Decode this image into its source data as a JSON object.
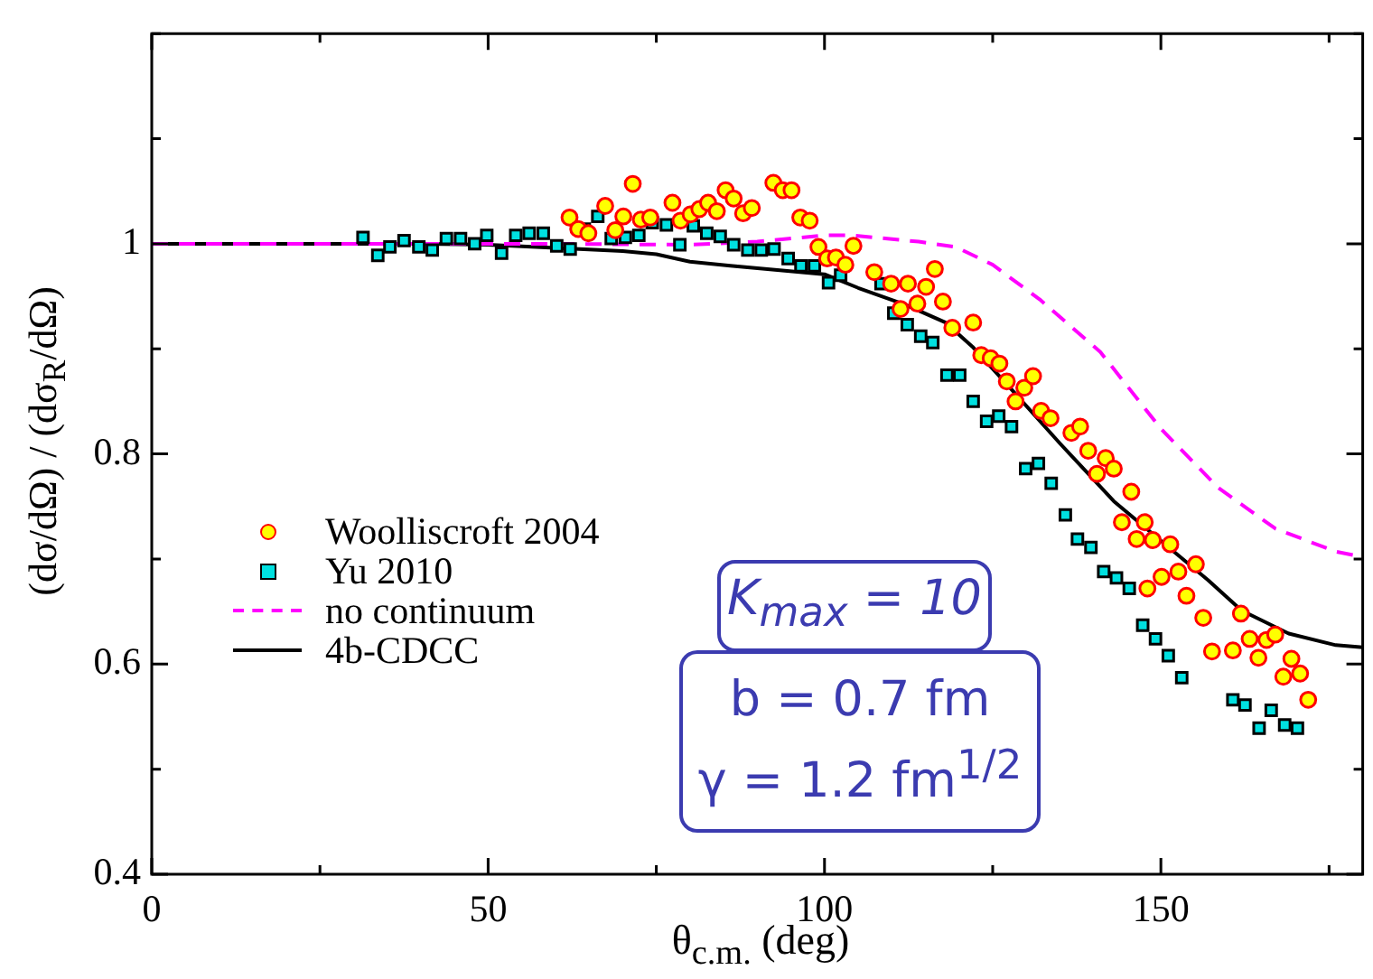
{
  "chart_data": {
    "type": "scatter",
    "xlabel": "θ$_{c.m.}$ (deg)",
    "ylabel": "(dσ/dΩ) / (dσ$_{R}$/dΩ)",
    "xlim": [
      0,
      180
    ],
    "xticks": [
      0,
      {
        "value": 25,
        "label": null
      },
      50,
      {
        "value": 75,
        "label": null
      },
      100,
      {
        "value": 125,
        "label": null
      },
      150,
      {
        "value": 175,
        "label": null
      }
    ],
    "ylim": [
      0.4,
      1.2
    ],
    "yticks": [
      0.4,
      {
        "value": 0.5,
        "label": null
      },
      0.6,
      {
        "value": 0.7,
        "label": null
      },
      0.8,
      {
        "value": 0.9,
        "label": null
      },
      1,
      {
        "value": 1.1,
        "label": null
      },
      {
        "value": 1.2,
        "label": null
      }
    ],
    "legend": "left",
    "grid": false,
    "annotations": [
      "K$_{max}$ = 10",
      "b = 0.7 fm",
      "γ = 1.2 fm$^{1/2}$"
    ],
    "series": [
      {
        "name": "Woolliscroft 2004",
        "marker": "circle",
        "color": "#ffff00",
        "x": [
          62.1,
          63.4,
          64.9,
          67.4,
          68.9,
          70.1,
          71.5,
          72.7,
          74.1,
          77.4,
          78.6,
          80.1,
          81.4,
          82.7,
          84.0,
          85.3,
          86.5,
          87.9,
          89.2,
          92.4,
          93.8,
          95.1,
          96.4,
          97.8,
          99.1,
          100.4,
          101.7,
          103.1,
          104.3,
          107.4,
          109.9,
          111.3,
          112.4,
          113.8,
          115.1,
          116.4,
          117.6,
          119.0,
          122.1,
          123.3,
          124.7,
          126.0,
          127.1,
          128.4,
          129.7,
          131.0,
          132.2,
          133.6,
          136.7,
          138.0,
          139.2,
          140.5,
          141.8,
          143.0,
          144.2,
          145.6,
          146.4,
          147.6,
          148.0,
          148.8,
          150.1,
          151.4,
          152.6,
          153.8,
          155.2,
          156.3,
          157.6,
          160.7,
          161.9,
          163.2,
          164.5,
          165.7,
          167.0,
          168.2,
          169.4,
          170.7,
          171.9
        ],
        "values": [
          1.025,
          1.014,
          1.01,
          1.036,
          1.013,
          1.026,
          1.057,
          1.023,
          1.025,
          1.039,
          1.022,
          1.028,
          1.033,
          1.039,
          1.031,
          1.051,
          1.043,
          1.029,
          1.034,
          1.058,
          1.051,
          1.051,
          1.025,
          1.022,
          0.997,
          0.986,
          0.987,
          0.98,
          0.998,
          0.973,
          0.962,
          0.938,
          0.962,
          0.943,
          0.959,
          0.976,
          0.945,
          0.92,
          0.925,
          0.894,
          0.891,
          0.886,
          0.869,
          0.85,
          0.863,
          0.874,
          0.841,
          0.834,
          0.82,
          0.826,
          0.803,
          0.781,
          0.796,
          0.786,
          0.735,
          0.764,
          0.719,
          0.735,
          0.672,
          0.718,
          0.683,
          0.714,
          0.688,
          0.665,
          0.695,
          0.644,
          0.612,
          0.613,
          0.648,
          0.624,
          0.606,
          0.623,
          0.628,
          0.588,
          0.605,
          0.591,
          0.566
        ]
      },
      {
        "name": "Yu 2010",
        "marker": "square",
        "color": "#00e0e0",
        "x": [
          31.4,
          33.6,
          35.4,
          37.5,
          39.7,
          41.7,
          43.8,
          45.9,
          48.0,
          49.8,
          52.0,
          54.1,
          56.1,
          58.2,
          60.2,
          62.2,
          64.3,
          66.3,
          68.3,
          70.4,
          72.4,
          74.4,
          76.5,
          78.5,
          80.5,
          82.5,
          84.5,
          86.5,
          88.6,
          90.6,
          92.5,
          94.6,
          96.5,
          98.5,
          100.6,
          102.4,
          108.4,
          110.3,
          112.3,
          114.3,
          116.1,
          118.2,
          120.1,
          122.1,
          124.1,
          125.9,
          127.8,
          129.9,
          131.8,
          133.7,
          135.8,
          137.6,
          139.6,
          141.5,
          143.4,
          145.3,
          147.3,
          149.2,
          151.1,
          153.1,
          160.7,
          162.5,
          164.6,
          166.4,
          168.4,
          170.3
        ],
        "values": [
          1.006,
          0.989,
          0.997,
          1.003,
          0.997,
          0.994,
          1.005,
          1.005,
          1.0,
          1.008,
          0.991,
          1.008,
          1.01,
          1.01,
          0.998,
          0.995,
          1.014,
          1.026,
          1.005,
          1.006,
          1.008,
          1.02,
          1.018,
          0.999,
          1.017,
          1.01,
          1.007,
          0.999,
          0.994,
          0.994,
          0.995,
          0.986,
          0.979,
          0.979,
          0.963,
          0.97,
          0.962,
          0.934,
          0.923,
          0.912,
          0.906,
          0.875,
          0.875,
          0.85,
          0.831,
          0.836,
          0.826,
          0.786,
          0.791,
          0.772,
          0.742,
          0.719,
          0.711,
          0.688,
          0.682,
          0.672,
          0.637,
          0.624,
          0.608,
          0.587,
          0.566,
          0.561,
          0.539,
          0.556,
          0.542,
          0.539
        ]
      },
      {
        "name": "no continuum",
        "type": "line",
        "marker": "none",
        "line_style": "dashed",
        "color": "#ff00ff",
        "x": [
          0,
          60,
          80,
          90,
          100,
          104,
          114,
          119.5,
          125,
          132,
          141,
          150,
          158.5,
          167,
          176,
          180
        ],
        "values": [
          1,
          1,
          0.999,
          1.002,
          1.008,
          1.008,
          1.002,
          0.997,
          0.98,
          0.947,
          0.897,
          0.824,
          0.768,
          0.729,
          0.707,
          0.702
        ]
      },
      {
        "name": "4b-CDCC",
        "type": "line",
        "marker": "none",
        "line_style": "solid",
        "color": "#000000",
        "x": [
          0,
          20,
          40,
          50,
          60,
          70,
          75,
          80,
          86,
          93,
          100,
          105,
          112,
          118,
          122,
          128,
          135,
          143,
          151,
          157,
          162,
          169,
          176,
          180
        ],
        "values": [
          1,
          1,
          1,
          0.999,
          0.996,
          0.993,
          0.99,
          0.983,
          0.979,
          0.975,
          0.971,
          0.958,
          0.942,
          0.925,
          0.902,
          0.86,
          0.81,
          0.755,
          0.712,
          0.68,
          0.651,
          0.629,
          0.618,
          0.616
        ]
      }
    ]
  }
}
